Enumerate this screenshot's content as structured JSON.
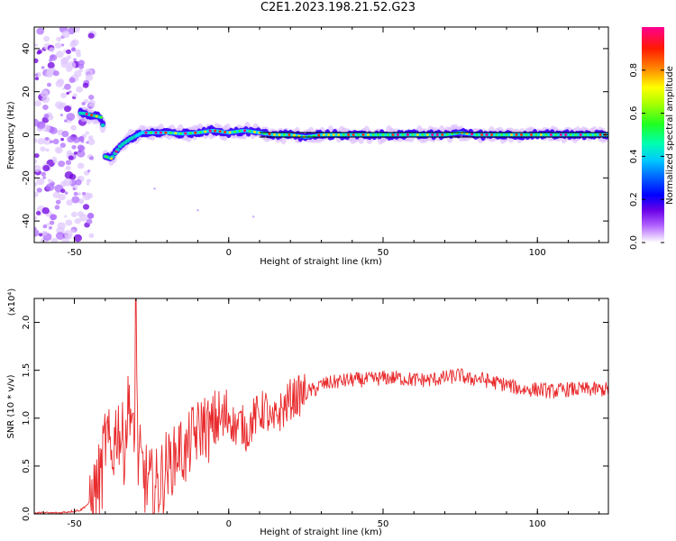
{
  "title": "C2E1.2023.198.21.52.G23",
  "chart_data": [
    {
      "type": "heatmap",
      "xlabel": "Height of straight line (km)",
      "ylabel": "Frequency (Hz)",
      "xlim": [
        -63,
        123
      ],
      "ylim": [
        -50,
        50
      ],
      "xticks": [
        -50,
        0,
        50,
        100
      ],
      "yticks": [
        -40,
        -20,
        0,
        20,
        40
      ],
      "colorbar": {
        "label": "Normalized spectral amplitude",
        "range": [
          0.0,
          1.0
        ],
        "ticks": [
          0.0,
          0.2,
          0.4,
          0.6,
          0.8
        ],
        "tick_labels": [
          "0.0",
          "0.2",
          "0.4",
          "0.6",
          "0.8"
        ],
        "colormap": [
          "#ffffff",
          "#8a00e6",
          "#0000ff",
          "#00bfff",
          "#00ff80",
          "#40ff00",
          "#ffff00",
          "#ff8000",
          "#ff0000",
          "#ff0080"
        ]
      },
      "ridge": {
        "x": [
          -47,
          -44,
          -41,
          -40,
          -38,
          -35,
          -32,
          -28,
          -24,
          -20,
          -15,
          -10,
          -5,
          0,
          5,
          10,
          15,
          20,
          25,
          30,
          40,
          50,
          60,
          70,
          75,
          80,
          90,
          100,
          110,
          123
        ],
        "y": [
          10,
          9,
          8,
          -10,
          -11,
          -5,
          -2,
          1,
          1,
          1,
          0.5,
          1,
          2,
          1,
          2,
          1,
          0,
          0,
          -1,
          0,
          0,
          0,
          0,
          0,
          1,
          0,
          0,
          0,
          0,
          0
        ]
      },
      "model_line": {
        "y": 0
      }
    },
    {
      "type": "line",
      "xlabel": "Height of straight line (km)",
      "ylabel": "SNR (10 * v/v)",
      "yscale_label": "(x10⁴)",
      "xlim": [
        -63,
        123
      ],
      "ylim": [
        0.0,
        2.25
      ],
      "xticks": [
        -50,
        0,
        50,
        100
      ],
      "yticks": [
        0.0,
        0.5,
        1.0,
        1.5,
        2.0
      ],
      "ytick_labels": [
        "0.0",
        "0.5",
        "1.0",
        "1.5",
        "2.0"
      ],
      "series": [
        {
          "color": "#e8292b",
          "x": [
            -63,
            -55,
            -48,
            -45,
            -43,
            -41,
            -40,
            -38,
            -36,
            -34,
            -32,
            -30.5,
            -30,
            -29.5,
            -28,
            -26,
            -24,
            -22,
            -20,
            -18,
            -16,
            -14,
            -12,
            -10,
            -8,
            -6,
            -4,
            -2,
            0,
            2,
            4,
            6,
            8,
            10,
            12,
            14,
            16,
            18,
            20,
            22,
            24,
            26,
            28,
            30,
            35,
            40,
            45,
            50,
            55,
            60,
            65,
            70,
            75,
            78,
            80,
            85,
            90,
            95,
            100,
            105,
            110,
            115,
            120,
            123
          ],
          "y": [
            0.01,
            0.01,
            0.04,
            0.12,
            0.25,
            0.45,
            0.8,
            0.6,
            0.95,
            0.7,
            1.25,
            0.5,
            2.25,
            0.6,
            0.45,
            0.3,
            0.25,
            0.35,
            0.5,
            0.55,
            0.7,
            0.6,
            0.8,
            0.85,
            0.95,
            0.85,
            1.0,
            0.95,
            1.05,
            0.9,
            0.95,
            0.85,
            1.0,
            1.05,
            1.1,
            0.9,
            1.05,
            1.1,
            1.2,
            1.22,
            1.25,
            1.28,
            1.3,
            1.35,
            1.38,
            1.4,
            1.4,
            1.42,
            1.42,
            1.4,
            1.4,
            1.42,
            1.45,
            1.4,
            1.42,
            1.38,
            1.35,
            1.3,
            1.3,
            1.28,
            1.3,
            1.3,
            1.3,
            1.3
          ]
        }
      ]
    }
  ]
}
